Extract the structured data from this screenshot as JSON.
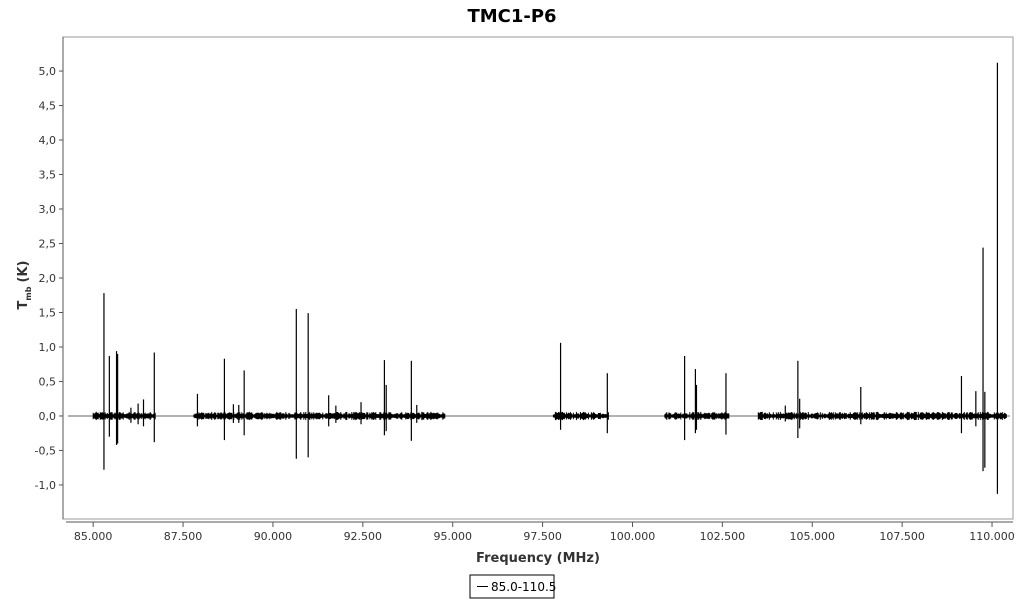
{
  "chart_data": {
    "type": "line",
    "title": "TMC1-P6",
    "xlabel": "Frequency (MHz)",
    "ylabel_main": "T",
    "ylabel_sub": "mb",
    "ylabel_unit": "(K)",
    "xlim": [
      84.3,
      110.5
    ],
    "ylim": [
      -1.45,
      5.45
    ],
    "x_ticks": [
      85.0,
      87.5,
      90.0,
      92.5,
      95.0,
      97.5,
      100.0,
      102.5,
      105.0,
      107.5,
      110.0
    ],
    "x_tick_labels": [
      "85.000",
      "87.500",
      "90.000",
      "92.500",
      "95.000",
      "97.500",
      "100.000",
      "102.500",
      "105.000",
      "107.500",
      "110.000"
    ],
    "y_ticks": [
      -1.0,
      -0.5,
      0.0,
      0.5,
      1.0,
      1.5,
      2.0,
      2.5,
      3.0,
      3.5,
      4.0,
      4.5,
      5.0
    ],
    "y_tick_labels": [
      "-1,0",
      "-0,5",
      "0,0",
      "0,5",
      "1,0",
      "1,5",
      "2,0",
      "2,5",
      "3,0",
      "3,5",
      "4,0",
      "4,5",
      "5,0"
    ],
    "baseline": 0.0,
    "legend": {
      "position": "bottom-center",
      "entries": [
        "85.0-110.5"
      ]
    },
    "series": [
      {
        "name": "85.0-110.5",
        "color": "#000000",
        "segments": [
          [
            85.0,
            86.75
          ],
          [
            87.8,
            94.8
          ],
          [
            97.8,
            99.35
          ],
          [
            100.9,
            102.7
          ],
          [
            103.5,
            110.4
          ]
        ],
        "noise_amplitude": 0.04,
        "peaks": [
          {
            "x": 85.3,
            "y": 1.78,
            "min": -0.78
          },
          {
            "x": 85.45,
            "y": 0.87,
            "min": -0.3
          },
          {
            "x": 85.65,
            "y": 0.94,
            "min": -0.42
          },
          {
            "x": 85.68,
            "y": 0.9,
            "min": -0.4
          },
          {
            "x": 86.05,
            "y": 0.12,
            "min": -0.1
          },
          {
            "x": 86.25,
            "y": 0.18,
            "min": -0.12
          },
          {
            "x": 86.4,
            "y": 0.24,
            "min": -0.15
          },
          {
            "x": 86.7,
            "y": 0.92,
            "min": -0.38
          },
          {
            "x": 87.9,
            "y": 0.32,
            "min": -0.15
          },
          {
            "x": 88.65,
            "y": 0.83,
            "min": -0.35
          },
          {
            "x": 88.9,
            "y": 0.17,
            "min": -0.1
          },
          {
            "x": 89.05,
            "y": 0.16,
            "min": -0.1
          },
          {
            "x": 89.2,
            "y": 0.66,
            "min": -0.28
          },
          {
            "x": 90.65,
            "y": 1.55,
            "min": -0.62
          },
          {
            "x": 90.98,
            "y": 1.49,
            "min": -0.6
          },
          {
            "x": 91.55,
            "y": 0.3,
            "min": -0.15
          },
          {
            "x": 91.75,
            "y": 0.15,
            "min": -0.1
          },
          {
            "x": 92.45,
            "y": 0.2,
            "min": -0.12
          },
          {
            "x": 93.1,
            "y": 0.81,
            "min": -0.28
          },
          {
            "x": 93.15,
            "y": 0.45,
            "min": -0.22
          },
          {
            "x": 93.85,
            "y": 0.8,
            "min": -0.36
          },
          {
            "x": 94.0,
            "y": 0.16,
            "min": -0.1
          },
          {
            "x": 98.0,
            "y": 1.06,
            "min": -0.2
          },
          {
            "x": 99.3,
            "y": 0.62,
            "min": -0.25
          },
          {
            "x": 101.45,
            "y": 0.87,
            "min": -0.35
          },
          {
            "x": 101.75,
            "y": 0.68,
            "min": -0.25
          },
          {
            "x": 101.78,
            "y": 0.45,
            "min": -0.2
          },
          {
            "x": 102.6,
            "y": 0.62,
            "min": -0.27
          },
          {
            "x": 104.25,
            "y": 0.15,
            "min": -0.08
          },
          {
            "x": 104.6,
            "y": 0.8,
            "min": -0.32
          },
          {
            "x": 104.65,
            "y": 0.25,
            "min": -0.18
          },
          {
            "x": 106.35,
            "y": 0.42,
            "min": -0.12
          },
          {
            "x": 109.15,
            "y": 0.58,
            "min": -0.25
          },
          {
            "x": 109.55,
            "y": 0.36,
            "min": -0.15
          },
          {
            "x": 109.75,
            "y": 2.44,
            "min": -0.8
          },
          {
            "x": 109.8,
            "y": 0.35,
            "min": -0.75
          },
          {
            "x": 110.15,
            "y": 5.12,
            "min": -1.13
          }
        ]
      }
    ]
  }
}
